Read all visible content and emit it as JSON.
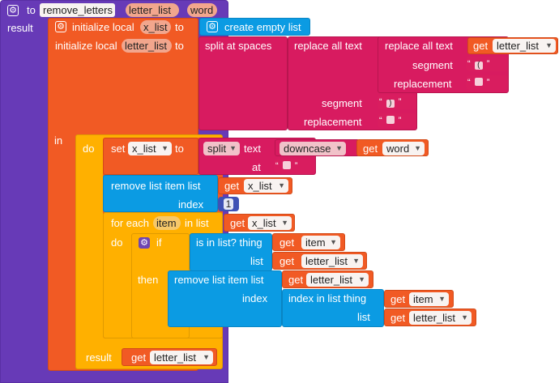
{
  "procedure": {
    "to_label": "to",
    "name": "remove_letters",
    "params": [
      "letter_list",
      "word"
    ],
    "result_label": "result"
  },
  "locals": {
    "init1_label": "initialize local",
    "init1_var": "x_list",
    "init1_to": "to",
    "create_empty_list": "create empty list",
    "init2_label": "initialize local",
    "init2_var": "letter_list",
    "init2_to": "to",
    "split_at_spaces": "split at spaces",
    "replace_all_text_outer": "replace all text",
    "replace_all_text_inner": "replace all text",
    "get_label": "get",
    "inner_get_var": "letter_list",
    "segment_label": "segment",
    "replacement_label": "replacement",
    "inner_segment_value": "(",
    "outer_segment_value": ")",
    "in_label": "in"
  },
  "do_block": {
    "do_label": "do",
    "set_label": "set",
    "set_var": "x_list",
    "set_to": "to",
    "split_dropdown": "split",
    "text_label": "text",
    "downcase_dropdown": "downcase",
    "get_label": "get",
    "word_var": "word",
    "at_label": "at",
    "remove_list_item": "remove list item  list",
    "remove_list_var": "x_list",
    "index_label": "index",
    "index_value": "1",
    "for_each_label": "for each",
    "item_var": "item",
    "in_list_label": "in list",
    "for_list_var": "x_list",
    "inner_do_label": "do",
    "if_label": "if",
    "is_in_list_label": "is in list? thing",
    "if_item_var": "item",
    "list_label": "list",
    "if_list_var": "letter_list",
    "then_label": "then",
    "then_remove_label": "remove list item  list",
    "then_remove_var": "letter_list",
    "then_index_label": "index",
    "index_in_list_label": "index in list  thing",
    "then_item_var": "item",
    "then_list_label": "list",
    "then_list_var": "letter_list",
    "result_label": "result",
    "result_var": "letter_list"
  },
  "colors": {
    "procedure": "#673ab7",
    "variables": "#f15a24",
    "text": "#d81b60",
    "lists": "#0b9be3",
    "control": "#ffb000",
    "math": "#3f51b5",
    "list_purple": "#6f45b2"
  }
}
